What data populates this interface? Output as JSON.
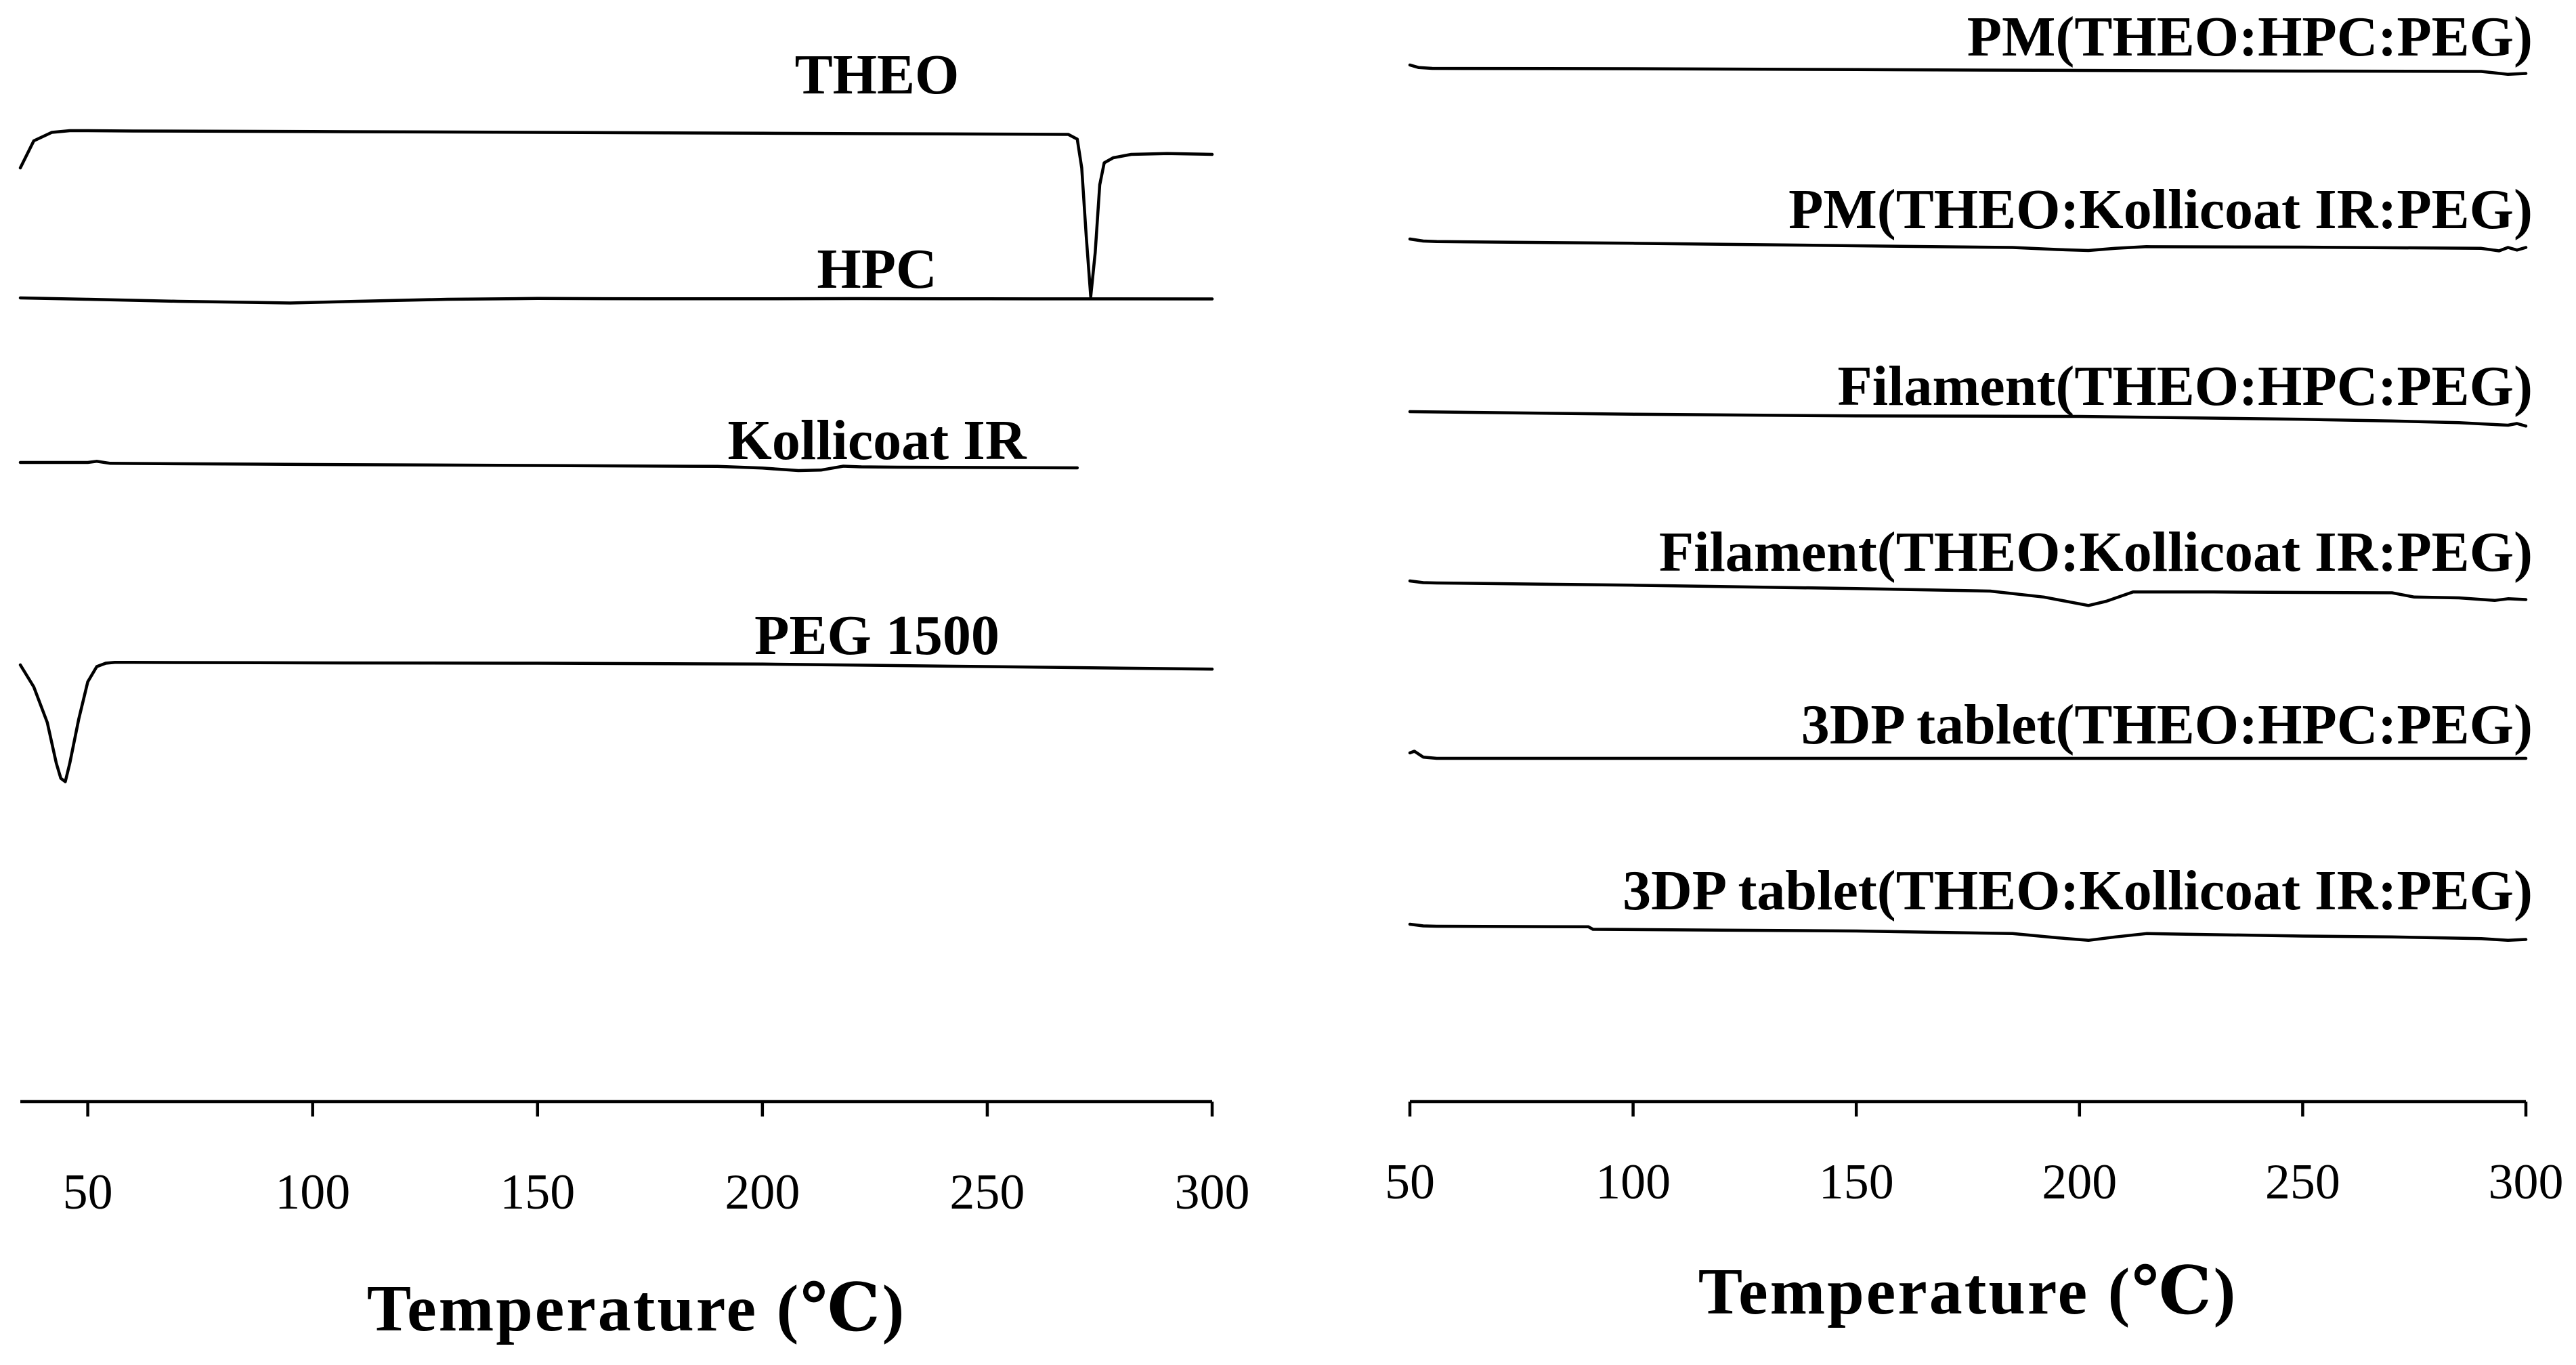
{
  "chart_data": [
    {
      "type": "line",
      "title": "",
      "xlabel": "Temperature (℃)",
      "ylabel": "",
      "xlim": [
        35,
        300
      ],
      "xticks": [
        50,
        100,
        150,
        200,
        250,
        300
      ],
      "grid": false,
      "legend": "none",
      "series": [
        {
          "name": "THEO",
          "x": [
            35,
            38,
            42,
            46,
            50,
            60,
            100,
            150,
            200,
            250,
            268,
            270,
            271,
            272,
            273,
            274,
            275,
            276,
            278,
            282,
            290,
            300
          ],
          "y": [
            0.0,
            1.6,
            2.1,
            2.2,
            2.2,
            2.18,
            2.15,
            2.1,
            2.05,
            2.0,
            1.98,
            1.7,
            0.0,
            -4.0,
            -7.6,
            -5.0,
            -1.0,
            0.3,
            0.6,
            0.8,
            0.85,
            0.8
          ]
        },
        {
          "name": "HPC",
          "x": [
            35,
            50,
            70,
            95,
            110,
            130,
            150,
            175,
            200,
            220,
            250,
            300
          ],
          "y": [
            0.0,
            -0.08,
            -0.2,
            -0.3,
            -0.2,
            -0.08,
            -0.03,
            -0.05,
            -0.05,
            -0.04,
            -0.05,
            -0.06
          ]
        },
        {
          "name": "Kollicoat IR",
          "x": [
            35,
            50,
            52,
            55,
            60,
            100,
            150,
            190,
            200,
            208,
            213,
            218,
            222,
            230,
            250,
            270
          ],
          "y": [
            0.0,
            0.0,
            0.07,
            -0.05,
            -0.06,
            -0.12,
            -0.18,
            -0.23,
            -0.33,
            -0.48,
            -0.45,
            -0.22,
            -0.26,
            -0.28,
            -0.3,
            -0.32
          ]
        },
        {
          "name": "PEG 1500",
          "x": [
            35,
            38,
            41,
            43,
            44,
            45,
            46,
            48,
            50,
            52,
            54,
            56,
            60,
            100,
            150,
            200,
            250,
            300
          ],
          "y": [
            0.0,
            -1.3,
            -3.4,
            -5.8,
            -6.7,
            -6.9,
            -5.8,
            -3.2,
            -1.0,
            -0.1,
            0.1,
            0.15,
            0.15,
            0.12,
            0.1,
            0.05,
            -0.1,
            -0.25
          ]
        }
      ]
    },
    {
      "type": "line",
      "title": "",
      "xlabel": "Temperature (℃)",
      "ylabel": "",
      "xlim": [
        50,
        300
      ],
      "xticks": [
        50,
        100,
        150,
        200,
        250,
        300
      ],
      "grid": false,
      "legend": "none",
      "series": [
        {
          "name": "PM(THEO:HPC:PEG)",
          "x": [
            50,
            52,
            55,
            100,
            150,
            200,
            250,
            290,
            296,
            300
          ],
          "y": [
            0.0,
            -0.15,
            -0.2,
            -0.22,
            -0.27,
            -0.32,
            -0.36,
            -0.38,
            -0.55,
            -0.5
          ]
        },
        {
          "name": "PM(THEO:Kollicoat IR:PEG)",
          "x": [
            50,
            53,
            56,
            100,
            150,
            185,
            195,
            202,
            208,
            215,
            250,
            290,
            294,
            296,
            298,
            300
          ],
          "y": [
            0.0,
            -0.12,
            -0.15,
            -0.25,
            -0.4,
            -0.5,
            -0.62,
            -0.68,
            -0.55,
            -0.45,
            -0.48,
            -0.55,
            -0.7,
            -0.5,
            -0.65,
            -0.5
          ]
        },
        {
          "name": "Filament(THEO:HPC:PEG)",
          "x": [
            50,
            100,
            150,
            200,
            250,
            270,
            285,
            296,
            298,
            300
          ],
          "y": [
            0.0,
            -0.15,
            -0.25,
            -0.28,
            -0.45,
            -0.55,
            -0.65,
            -0.8,
            -0.7,
            -0.85
          ]
        },
        {
          "name": "Filament(THEO:Kollicoat IR:PEG)",
          "x": [
            50,
            53,
            56,
            100,
            150,
            180,
            192,
            198,
            202,
            206,
            212,
            230,
            250,
            270,
            275,
            285,
            293,
            296,
            300
          ],
          "y": [
            0.0,
            -0.1,
            -0.12,
            -0.25,
            -0.45,
            -0.6,
            -0.95,
            -1.25,
            -1.45,
            -1.2,
            -0.65,
            -0.65,
            -0.68,
            -0.7,
            -0.95,
            -1.0,
            -1.15,
            -1.05,
            -1.1
          ]
        },
        {
          "name": "3DP tablet(THEO:HPC:PEG)",
          "x": [
            50,
            51,
            53,
            56,
            100,
            150,
            200,
            250,
            300
          ],
          "y": [
            0.0,
            0.1,
            -0.25,
            -0.32,
            -0.32,
            -0.32,
            -0.32,
            -0.32,
            -0.32
          ]
        },
        {
          "name": "3DP tablet(THEO:Kollicoat IR:PEG)",
          "x": [
            50,
            53,
            56,
            90,
            91,
            150,
            185,
            195,
            202,
            208,
            215,
            250,
            270,
            290,
            296,
            300
          ],
          "y": [
            0.0,
            -0.1,
            -0.12,
            -0.15,
            -0.3,
            -0.4,
            -0.55,
            -0.8,
            -0.95,
            -0.75,
            -0.55,
            -0.7,
            -0.75,
            -0.85,
            -0.95,
            -0.9
          ]
        }
      ]
    }
  ]
}
